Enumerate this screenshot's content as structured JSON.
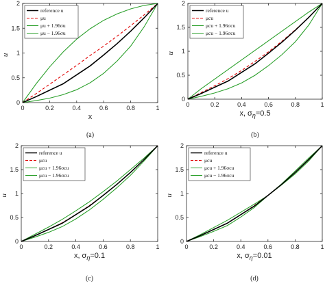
{
  "chart_data": [
    {
      "type": "line",
      "caption": "(a)",
      "xlabel": "x",
      "ylabel": "u",
      "xlim": [
        0,
        1
      ],
      "ylim": [
        0,
        2
      ],
      "xticks": [
        "0",
        "0.2",
        "0.4",
        "0.6",
        "0.8",
        "1"
      ],
      "yticks": [
        "0",
        "0.5",
        "1",
        "1.5",
        "2"
      ],
      "legend": "top-left",
      "x": [
        0,
        0.1,
        0.2,
        0.3,
        0.4,
        0.5,
        0.6,
        0.7,
        0.8,
        0.9,
        1
      ],
      "series": [
        {
          "name": "reference u",
          "color": "#000000",
          "style": "solid",
          "values": [
            0,
            0.12,
            0.25,
            0.38,
            0.56,
            0.74,
            0.96,
            1.19,
            1.44,
            1.71,
            2
          ]
        },
        {
          "name": "μu",
          "color": "#e00000",
          "style": "dashed",
          "values": [
            0,
            0.18,
            0.37,
            0.56,
            0.75,
            0.95,
            1.14,
            1.34,
            1.55,
            1.77,
            2
          ]
        },
        {
          "name": "μu + 1.96σu",
          "color": "#2ca02c",
          "style": "solid",
          "values": [
            0,
            0.38,
            0.72,
            1.02,
            1.28,
            1.49,
            1.66,
            1.79,
            1.89,
            1.96,
            2
          ]
        },
        {
          "name": "μu − 1.96σu",
          "color": "#2ca02c",
          "style": "solid",
          "values": [
            0,
            0.04,
            0.09,
            0.16,
            0.26,
            0.4,
            0.59,
            0.84,
            1.14,
            1.53,
            2
          ]
        }
      ]
    },
    {
      "type": "line",
      "caption": "(b)",
      "xlabel": "x, σ",
      "xlabel_sub": "η",
      "xlabel_tail": "=0.5",
      "ylabel": "u",
      "xlim": [
        0,
        1
      ],
      "ylim": [
        0,
        2
      ],
      "xticks": [
        "0",
        "0.2",
        "0.4",
        "0.6",
        "0.8",
        "1"
      ],
      "yticks": [
        "0",
        "0.5",
        "1",
        "1.5",
        "2"
      ],
      "legend": "top-left",
      "x": [
        0,
        0.1,
        0.2,
        0.3,
        0.4,
        0.5,
        0.6,
        0.7,
        0.8,
        0.9,
        1
      ],
      "series": [
        {
          "name": "reference u",
          "color": "#000000",
          "style": "solid",
          "values": [
            0,
            0.12,
            0.25,
            0.38,
            0.56,
            0.74,
            0.96,
            1.19,
            1.44,
            1.71,
            2
          ]
        },
        {
          "name": "μcu",
          "color": "#e00000",
          "style": "dashed",
          "values": [
            0,
            0.14,
            0.28,
            0.43,
            0.6,
            0.79,
            0.99,
            1.21,
            1.45,
            1.71,
            2
          ]
        },
        {
          "name": "μcu + 1.96σcu",
          "color": "#2ca02c",
          "style": "solid",
          "values": [
            0,
            0.22,
            0.42,
            0.62,
            0.82,
            1.02,
            1.22,
            1.42,
            1.62,
            1.82,
            2
          ]
        },
        {
          "name": "μcu − 1.96σcu",
          "color": "#2ca02c",
          "style": "solid",
          "values": [
            0,
            0.06,
            0.13,
            0.22,
            0.34,
            0.5,
            0.7,
            0.93,
            1.2,
            1.55,
            2
          ]
        }
      ]
    },
    {
      "type": "line",
      "caption": "(c)",
      "xlabel": "x, σ",
      "xlabel_sub": "η",
      "xlabel_tail": "=0.1",
      "ylabel": "u",
      "xlim": [
        0,
        1
      ],
      "ylim": [
        0,
        2
      ],
      "xticks": [
        "0",
        "0.2",
        "0.4",
        "0.6",
        "0.8",
        "1"
      ],
      "yticks": [
        "0",
        "0.5",
        "1",
        "1.5",
        "2"
      ],
      "legend": "top-left",
      "x": [
        0,
        0.1,
        0.2,
        0.3,
        0.4,
        0.5,
        0.6,
        0.7,
        0.8,
        0.9,
        1
      ],
      "series": [
        {
          "name": "reference u",
          "color": "#000000",
          "style": "solid",
          "values": [
            0,
            0.12,
            0.25,
            0.38,
            0.56,
            0.74,
            0.96,
            1.19,
            1.44,
            1.71,
            2
          ]
        },
        {
          "name": "μcu",
          "color": "#e00000",
          "style": "dashed",
          "values": [
            0,
            0.12,
            0.25,
            0.39,
            0.56,
            0.75,
            0.96,
            1.19,
            1.44,
            1.71,
            2
          ]
        },
        {
          "name": "μcu + 1.96σcu",
          "color": "#2ca02c",
          "style": "solid",
          "values": [
            0,
            0.15,
            0.3,
            0.46,
            0.64,
            0.83,
            1.04,
            1.26,
            1.5,
            1.74,
            2
          ]
        },
        {
          "name": "μcu − 1.96σcu",
          "color": "#2ca02c",
          "style": "solid",
          "values": [
            0,
            0.09,
            0.19,
            0.31,
            0.47,
            0.66,
            0.88,
            1.12,
            1.38,
            1.68,
            2
          ]
        }
      ]
    },
    {
      "type": "line",
      "caption": "(d)",
      "xlabel": "x, σ",
      "xlabel_sub": "η",
      "xlabel_tail": "=0.01",
      "ylabel": "u",
      "xlim": [
        0,
        1
      ],
      "ylim": [
        0,
        2
      ],
      "xticks": [
        "0",
        "0.2",
        "0.4",
        "0.6",
        "0.8",
        "1"
      ],
      "yticks": [
        "0",
        "0.5",
        "1",
        "1.5",
        "2"
      ],
      "legend": "top-left",
      "x": [
        0,
        0.1,
        0.2,
        0.3,
        0.4,
        0.5,
        0.6,
        0.7,
        0.8,
        0.9,
        1
      ],
      "series": [
        {
          "name": "reference u",
          "color": "#000000",
          "style": "solid",
          "values": [
            0,
            0.12,
            0.25,
            0.38,
            0.56,
            0.74,
            0.96,
            1.19,
            1.44,
            1.71,
            2
          ]
        },
        {
          "name": "μcu",
          "color": "#e00000",
          "style": "dashed",
          "values": [
            0,
            0.12,
            0.25,
            0.38,
            0.56,
            0.75,
            0.96,
            1.19,
            1.44,
            1.71,
            2
          ]
        },
        {
          "name": "μcu + 1.96σcu",
          "color": "#2ca02c",
          "style": "solid",
          "values": [
            0,
            0.14,
            0.29,
            0.44,
            0.61,
            0.78,
            0.96,
            1.2,
            1.47,
            1.74,
            2
          ]
        },
        {
          "name": "μcu − 1.96σcu",
          "color": "#2ca02c",
          "style": "solid",
          "values": [
            0,
            0.1,
            0.21,
            0.33,
            0.51,
            0.71,
            0.96,
            1.18,
            1.41,
            1.68,
            2
          ]
        }
      ]
    }
  ]
}
